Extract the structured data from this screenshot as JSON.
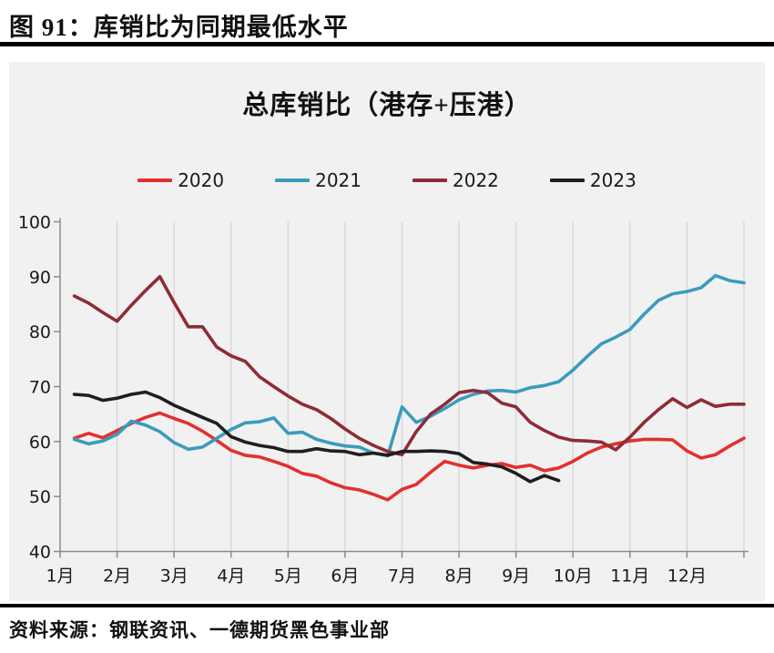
{
  "figure": {
    "title": "图 91：库销比为同期最低水平"
  },
  "source": {
    "text": "资料来源：钢联资讯、一德期货黑色事业部"
  },
  "colors": {
    "page_bg": "#ffffff",
    "panel_bg": "#f1f1f1",
    "grid": "#d2d2d2",
    "axis": "#8c8c8c",
    "rule": "#000000",
    "series_2020": "#e2312d",
    "series_2021": "#3b9bbd",
    "series_2022": "#8e2c35",
    "series_2023": "#1f1f1f"
  },
  "chart_data": {
    "type": "line",
    "title": "总库销比（港存+压港）",
    "legend": {
      "position": "top",
      "entries": [
        "2020",
        "2021",
        "2022",
        "2023"
      ]
    },
    "x_axis": {
      "tick_labels": [
        "1月",
        "2月",
        "3月",
        "4月",
        "5月",
        "6月",
        "7月",
        "8月",
        "9月",
        "10月",
        "11月",
        "12月"
      ],
      "range_months": [
        1,
        13
      ],
      "vertical_gridlines": true
    },
    "y_axis": {
      "ticks": [
        40,
        50,
        60,
        70,
        80,
        90,
        100
      ],
      "range": [
        40,
        100
      ],
      "horizontal_gridlines": false
    },
    "x_months": [
      1.25,
      1.5,
      1.75,
      2.0,
      2.25,
      2.5,
      2.75,
      3.0,
      3.25,
      3.5,
      3.75,
      4.0,
      4.25,
      4.5,
      4.75,
      5.0,
      5.25,
      5.5,
      5.75,
      6.0,
      6.25,
      6.5,
      6.75,
      7.0,
      7.25,
      7.5,
      7.75,
      8.0,
      8.25,
      8.5,
      8.75,
      9.0,
      9.25,
      9.5,
      9.75,
      10.0,
      10.25,
      10.5,
      10.75,
      11.0,
      11.25,
      11.5,
      11.75,
      12.0,
      12.25,
      12.5,
      12.75,
      13.0
    ],
    "series": [
      {
        "name": "2020",
        "color": "#e2312d",
        "values": [
          60.6,
          61.5,
          60.7,
          62.0,
          63.3,
          64.4,
          65.2,
          64.2,
          63.3,
          61.9,
          60.2,
          58.4,
          57.5,
          57.2,
          56.4,
          55.5,
          54.2,
          53.7,
          52.5,
          51.6,
          51.2,
          50.4,
          49.4,
          51.3,
          52.2,
          54.4,
          56.4,
          55.7,
          55.2,
          55.7,
          56.0,
          55.3,
          55.7,
          54.7,
          55.2,
          56.4,
          57.9,
          59.0,
          59.6,
          60.1,
          60.4,
          60.4,
          60.3,
          58.3,
          57.0,
          57.6,
          59.2,
          60.6
        ]
      },
      {
        "name": "2021",
        "color": "#3b9bbd",
        "values": [
          60.4,
          59.6,
          60.1,
          61.3,
          63.7,
          63.0,
          61.8,
          59.8,
          58.6,
          59.0,
          60.6,
          62.2,
          63.4,
          63.6,
          64.3,
          61.5,
          61.7,
          60.4,
          59.7,
          59.2,
          59.0,
          57.9,
          57.4,
          66.3,
          63.5,
          64.6,
          66.0,
          67.6,
          68.6,
          69.2,
          69.3,
          69.0,
          69.8,
          70.2,
          70.9,
          73.0,
          75.5,
          77.8,
          79.0,
          80.4,
          83.2,
          85.7,
          86.9,
          87.3,
          88.0,
          90.2,
          89.3,
          88.9
        ]
      },
      {
        "name": "2022",
        "color": "#8e2c35",
        "values": [
          86.5,
          85.2,
          83.5,
          81.9,
          84.8,
          87.5,
          90.0,
          85.3,
          80.9,
          80.9,
          77.2,
          75.6,
          74.6,
          71.8,
          70.0,
          68.3,
          66.8,
          65.8,
          64.2,
          62.3,
          60.6,
          59.3,
          58.2,
          57.6,
          61.8,
          65.0,
          66.8,
          68.9,
          69.3,
          68.9,
          67.0,
          66.3,
          63.5,
          62.0,
          60.8,
          60.2,
          60.1,
          59.9,
          58.5,
          60.8,
          63.5,
          65.8,
          67.8,
          66.2,
          67.6,
          66.4,
          66.8,
          66.8
        ]
      },
      {
        "name": "2023",
        "color": "#1f1f1f",
        "values": [
          68.6,
          68.4,
          67.5,
          67.9,
          68.6,
          69.0,
          68.0,
          66.6,
          65.5,
          64.4,
          63.3,
          60.9,
          59.9,
          59.3,
          58.9,
          58.2,
          58.2,
          58.7,
          58.3,
          58.2,
          57.6,
          57.9,
          57.5,
          58.2,
          58.2,
          58.3,
          58.2,
          57.8,
          56.2,
          55.9,
          55.4,
          54.2,
          52.7,
          53.8,
          52.9
        ]
      }
    ]
  }
}
